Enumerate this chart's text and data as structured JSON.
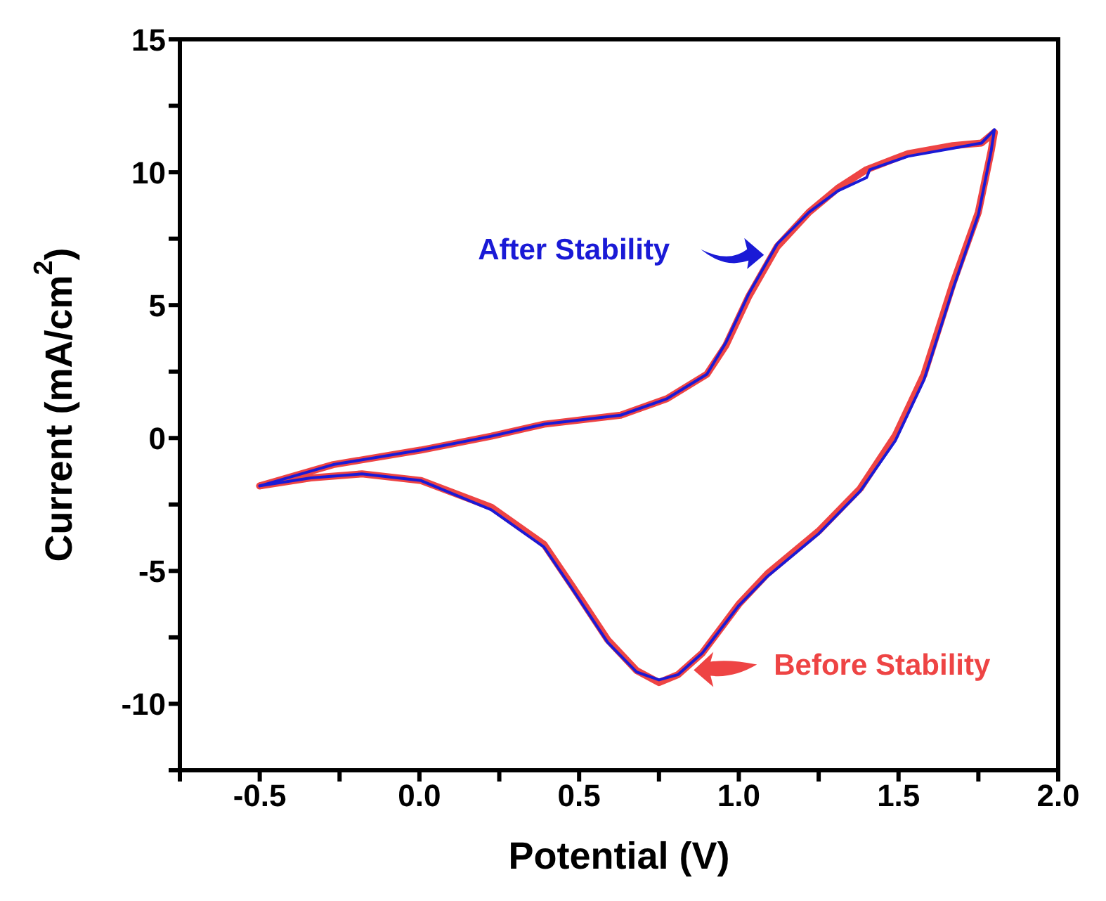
{
  "chart_data": {
    "type": "line",
    "xlabel": "Potential (V)",
    "ylabel": "Current (mA/cm$^{2}$)",
    "xlim": [
      -0.75,
      2.0
    ],
    "ylim": [
      -12.5,
      15
    ],
    "xticks": [
      {
        "value": -0.75,
        "label": null
      },
      -0.5,
      {
        "value": -0.25,
        "label": null
      },
      {
        "value": 0,
        "label": "0.0"
      },
      {
        "value": 0.25,
        "label": null
      },
      0.5,
      {
        "value": 0.75,
        "label": null
      },
      {
        "value": 1,
        "label": "1.0"
      },
      {
        "value": 1.25,
        "label": null
      },
      1.5,
      {
        "value": 1.75,
        "label": null
      },
      {
        "value": 2,
        "label": "2.0"
      }
    ],
    "yticks": [
      {
        "value": -12.5,
        "label": null
      },
      -10,
      {
        "value": -7.5,
        "label": null
      },
      -5,
      {
        "value": -2.5,
        "label": null
      },
      0,
      {
        "value": 2.5,
        "label": null
      },
      5,
      {
        "value": 7.5,
        "label": null
      },
      10,
      {
        "value": 12.5,
        "label": null
      },
      15
    ],
    "marker": "none",
    "line_style": "solid",
    "series": [
      {
        "color": "#ee4444",
        "x": [
          -0.5,
          -0.27,
          0.005,
          0.225,
          0.39,
          0.63,
          0.775,
          0.9,
          0.96,
          1.03,
          1.12,
          1.22,
          1.31,
          1.4,
          1.53,
          1.67,
          1.76,
          1.8
        ],
        "values": [
          -1.8,
          -1.0,
          -0.45,
          0.07,
          0.52,
          0.86,
          1.48,
          2.4,
          3.5,
          5.3,
          7.2,
          8.5,
          9.4,
          10.1,
          10.7,
          11.0,
          11.1,
          11.5
        ]
      },
      {
        "color": "#ee4444",
        "x": [
          1.8,
          1.79,
          1.75,
          1.67,
          1.58,
          1.49,
          1.38,
          1.25,
          1.09,
          1.0,
          0.885,
          0.81,
          0.75,
          0.68,
          0.59,
          0.48,
          0.39,
          0.225,
          0.005,
          -0.18,
          -0.34,
          -0.5
        ],
        "values": [
          11.5,
          10.8,
          8.5,
          5.8,
          2.4,
          0.1,
          -1.9,
          -3.5,
          -5.1,
          -6.25,
          -8.1,
          -8.9,
          -9.2,
          -8.75,
          -7.6,
          -5.6,
          -4.0,
          -2.6,
          -1.6,
          -1.35,
          -1.5,
          -1.8
        ]
      },
      {
        "color": "#1a1ad6",
        "x": [
          -0.5,
          -0.27,
          0.005,
          0.225,
          0.39,
          0.63,
          0.775,
          0.9,
          0.96,
          1.03,
          1.12,
          1.22,
          1.31,
          1.4,
          1.41,
          1.53,
          1.67,
          1.76,
          1.8
        ],
        "values": [
          -1.8,
          -1.0,
          -0.45,
          0.07,
          0.52,
          0.86,
          1.48,
          2.4,
          3.6,
          5.4,
          7.3,
          8.5,
          9.3,
          9.8,
          10.1,
          10.6,
          10.9,
          11.1,
          11.6
        ]
      },
      {
        "color": "#1a1ad6",
        "x": [
          1.8,
          1.79,
          1.75,
          1.67,
          1.58,
          1.49,
          1.38,
          1.25,
          1.09,
          1.0,
          0.885,
          0.81,
          0.75,
          0.68,
          0.59,
          0.48,
          0.39,
          0.225,
          0.005,
          -0.18,
          -0.34,
          -0.5
        ],
        "values": [
          11.6,
          10.8,
          8.4,
          5.6,
          2.2,
          -0.1,
          -2.0,
          -3.6,
          -5.2,
          -6.3,
          -8.1,
          -8.9,
          -9.1,
          -8.8,
          -7.7,
          -5.7,
          -4.1,
          -2.7,
          -1.6,
          -1.35,
          -1.5,
          -1.8
        ]
      }
    ],
    "annotations": [
      "After Stability",
      "Before Stability"
    ]
  }
}
